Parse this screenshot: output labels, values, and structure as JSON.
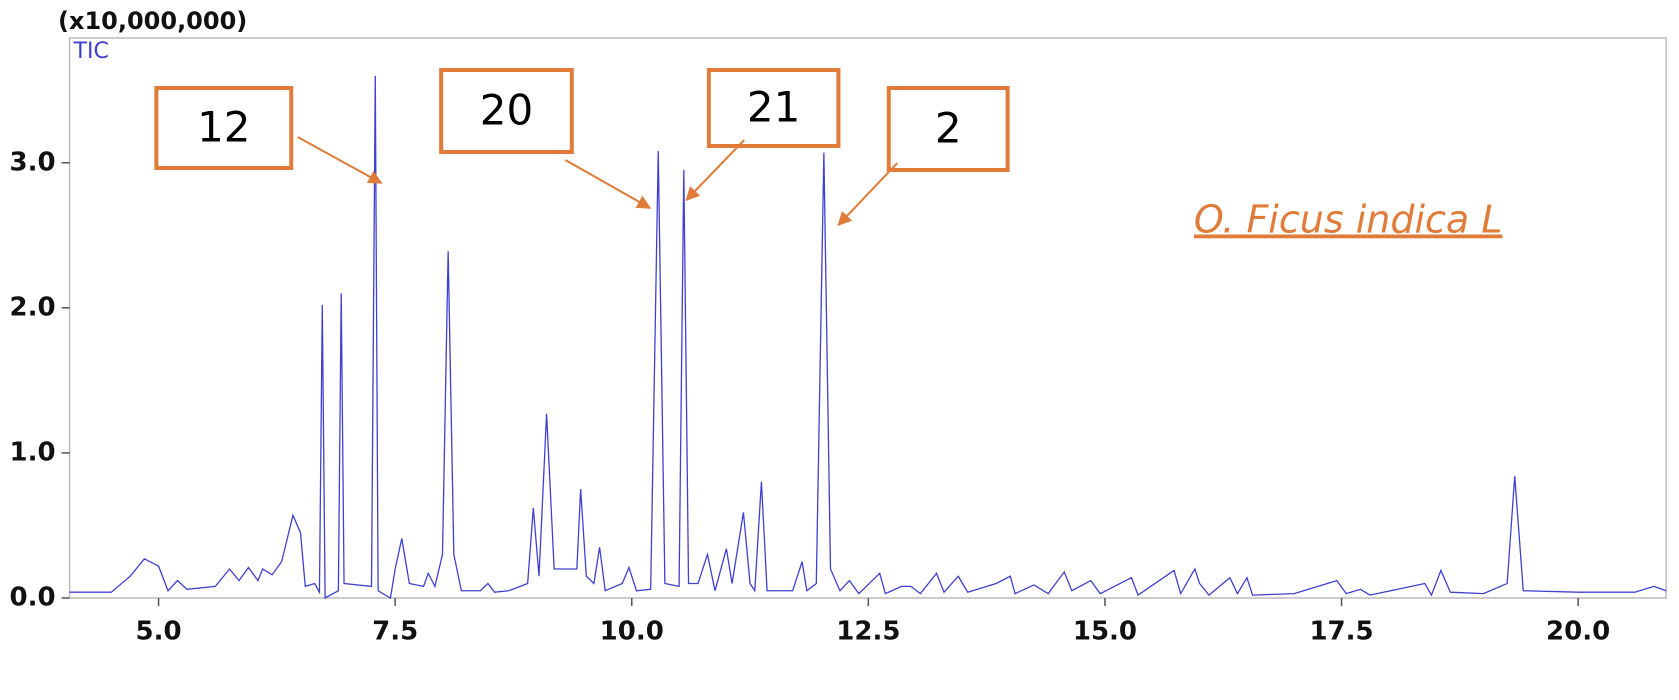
{
  "chart_data": {
    "type": "line",
    "ylabel": "(x10,000,000)",
    "sample_label": "O. Ficus indica L",
    "annotations": [
      "12",
      "20",
      "21",
      "2"
    ],
    "annotation_color": "#e07b39",
    "xlim": [
      4.06,
      20.93
    ],
    "ylim": [
      0,
      3.86
    ],
    "xticks": [
      {
        "value": 5,
        "label": "5.0"
      },
      {
        "value": 7.5,
        "label": "7.5"
      },
      {
        "value": 10,
        "label": "10.0"
      },
      {
        "value": 12.5,
        "label": "12.5"
      },
      {
        "value": 15,
        "label": "15.0"
      },
      {
        "value": 17.5,
        "label": "17.5"
      },
      {
        "value": 20,
        "label": "20.0"
      }
    ],
    "yticks": [
      {
        "value": 0,
        "label": "0.0"
      },
      {
        "value": 1,
        "label": "1.0"
      },
      {
        "value": 2,
        "label": "2.0"
      },
      {
        "value": 3,
        "label": "3.0"
      }
    ],
    "x": [
      4.06,
      4.5,
      4.7,
      4.85,
      5.0,
      5.1,
      5.2,
      5.3,
      5.6,
      5.75,
      5.85,
      5.95,
      6.05,
      6.1,
      6.2,
      6.3,
      6.42,
      6.5,
      6.55,
      6.65,
      6.7,
      6.73,
      6.76,
      6.9,
      6.93,
      6.96,
      7.25,
      7.29,
      7.32,
      7.45,
      7.5,
      7.57,
      7.65,
      7.8,
      7.85,
      7.92,
      8.0,
      8.06,
      8.12,
      8.2,
      8.4,
      8.48,
      8.55,
      8.7,
      8.9,
      8.96,
      9.02,
      9.1,
      9.18,
      9.35,
      9.42,
      9.46,
      9.52,
      9.6,
      9.66,
      9.72,
      9.9,
      9.97,
      10.05,
      10.2,
      10.28,
      10.35,
      10.5,
      10.55,
      10.6,
      10.7,
      10.8,
      10.88,
      11.0,
      11.06,
      11.18,
      11.25,
      11.3,
      11.37,
      11.43,
      11.7,
      11.8,
      11.85,
      11.95,
      12.03,
      12.1,
      12.2,
      12.3,
      12.4,
      12.62,
      12.68,
      12.85,
      12.95,
      13.05,
      13.22,
      13.3,
      13.45,
      13.55,
      13.85,
      14.0,
      14.05,
      14.25,
      14.4,
      14.57,
      14.65,
      14.85,
      14.95,
      15.28,
      15.35,
      15.73,
      15.8,
      15.95,
      16.0,
      16.1,
      16.32,
      16.4,
      16.5,
      16.56,
      17.0,
      17.45,
      17.55,
      17.7,
      17.8,
      18.38,
      18.45,
      18.55,
      18.65,
      19.0,
      19.25,
      19.33,
      19.42,
      20.0,
      20.6,
      20.8,
      20.93
    ],
    "series": [
      {
        "name": "TIC",
        "color": "#4040d0",
        "values": [
          0.04,
          0.04,
          0.15,
          0.27,
          0.22,
          0.05,
          0.12,
          0.06,
          0.08,
          0.2,
          0.12,
          0.21,
          0.12,
          0.2,
          0.16,
          0.25,
          0.57,
          0.45,
          0.08,
          0.1,
          0.04,
          2.02,
          0.0,
          0.05,
          2.1,
          0.1,
          0.08,
          3.6,
          0.05,
          0.0,
          0.2,
          0.41,
          0.1,
          0.08,
          0.17,
          0.08,
          0.3,
          2.39,
          0.3,
          0.05,
          0.05,
          0.1,
          0.04,
          0.05,
          0.1,
          0.62,
          0.15,
          1.27,
          0.2,
          0.2,
          0.2,
          0.75,
          0.15,
          0.1,
          0.35,
          0.05,
          0.1,
          0.21,
          0.05,
          0.06,
          3.08,
          0.1,
          0.08,
          2.95,
          0.1,
          0.1,
          0.3,
          0.05,
          0.34,
          0.1,
          0.59,
          0.1,
          0.05,
          0.8,
          0.05,
          0.05,
          0.25,
          0.05,
          0.1,
          3.07,
          0.2,
          0.05,
          0.12,
          0.03,
          0.17,
          0.03,
          0.08,
          0.08,
          0.03,
          0.17,
          0.04,
          0.15,
          0.04,
          0.1,
          0.15,
          0.03,
          0.09,
          0.03,
          0.18,
          0.05,
          0.12,
          0.03,
          0.14,
          0.02,
          0.19,
          0.03,
          0.2,
          0.1,
          0.02,
          0.14,
          0.03,
          0.14,
          0.02,
          0.03,
          0.12,
          0.03,
          0.06,
          0.02,
          0.1,
          0.02,
          0.19,
          0.04,
          0.03,
          0.1,
          0.84,
          0.05,
          0.04,
          0.04,
          0.08,
          0.05
        ]
      }
    ]
  }
}
